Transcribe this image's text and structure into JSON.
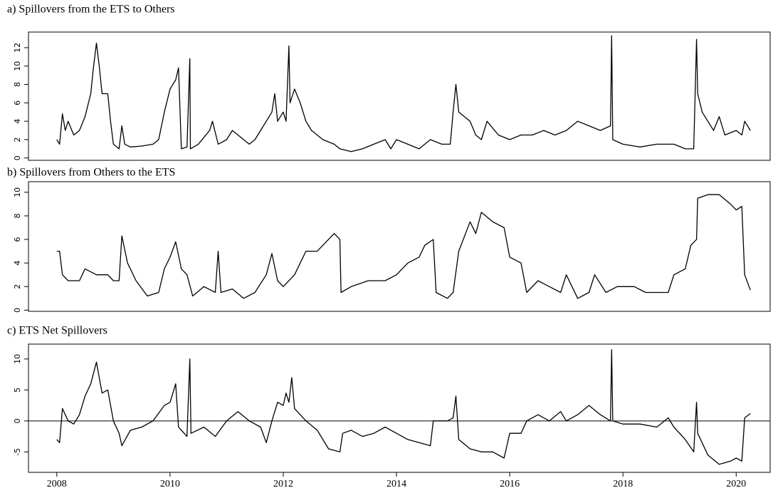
{
  "chart_data": [
    {
      "type": "line",
      "title": "a) Spillovers from the ETS to Others",
      "xlim": [
        2007.5,
        2020.6
      ],
      "ylim": [
        -0.25,
        13.7
      ],
      "yticks": [
        0,
        2,
        4,
        6,
        8,
        10,
        12
      ],
      "x": [
        2008.0,
        2008.05,
        2008.1,
        2008.15,
        2008.2,
        2008.3,
        2008.4,
        2008.5,
        2008.6,
        2008.65,
        2008.7,
        2008.75,
        2008.8,
        2008.9,
        2008.95,
        2009.0,
        2009.1,
        2009.15,
        2009.2,
        2009.3,
        2009.5,
        2009.7,
        2009.8,
        2009.9,
        2010.0,
        2010.1,
        2010.15,
        2010.2,
        2010.3,
        2010.35,
        2010.36,
        2010.5,
        2010.7,
        2010.75,
        2010.85,
        2011.0,
        2011.1,
        2011.2,
        2011.4,
        2011.5,
        2011.6,
        2011.7,
        2011.8,
        2011.85,
        2011.9,
        2012.0,
        2012.05,
        2012.1,
        2012.12,
        2012.2,
        2012.3,
        2012.4,
        2012.5,
        2012.7,
        2012.9,
        2013.0,
        2013.2,
        2013.4,
        2013.6,
        2013.8,
        2013.9,
        2014.0,
        2014.2,
        2014.4,
        2014.6,
        2014.8,
        2014.95,
        2015.0,
        2015.05,
        2015.1,
        2015.3,
        2015.4,
        2015.5,
        2015.6,
        2015.8,
        2016.0,
        2016.2,
        2016.4,
        2016.6,
        2016.8,
        2017.0,
        2017.2,
        2017.4,
        2017.6,
        2017.78,
        2017.8,
        2017.82,
        2018.0,
        2018.3,
        2018.6,
        2018.9,
        2019.1,
        2019.25,
        2019.3,
        2019.32,
        2019.4,
        2019.6,
        2019.7,
        2019.8,
        2020.0,
        2020.1,
        2020.15,
        2020.25
      ],
      "values": [
        2,
        1.5,
        4.8,
        3,
        4,
        2.5,
        3,
        4.5,
        7,
        10,
        12.5,
        10,
        7,
        7,
        4,
        1.5,
        1,
        3.5,
        1.5,
        1.2,
        1.3,
        1.5,
        2,
        5,
        7.5,
        8.5,
        9.8,
        1,
        1.2,
        10.8,
        1,
        1.5,
        3,
        4,
        1.5,
        2,
        3,
        2.5,
        1.5,
        2,
        3,
        4,
        5,
        7,
        4,
        5,
        4,
        12.2,
        6,
        7.5,
        6,
        4,
        3,
        2,
        1.5,
        1,
        0.7,
        1,
        1.5,
        2,
        1,
        2,
        1.5,
        1,
        2,
        1.5,
        1.5,
        5,
        8,
        5,
        4,
        2.5,
        2,
        4,
        2.5,
        2,
        2.5,
        2.5,
        3,
        2.5,
        3,
        4,
        3.5,
        3,
        3.5,
        13.3,
        2,
        1.5,
        1.2,
        1.5,
        1.5,
        1,
        1,
        12.9,
        7,
        5,
        3,
        4.5,
        2.5,
        3,
        2.5,
        4,
        3
      ],
      "color": "#000000"
    },
    {
      "type": "line",
      "title": "b) Spillovers from Others to the ETS",
      "xlim": [
        2007.5,
        2020.6
      ],
      "ylim": [
        -0.1,
        10.9
      ],
      "yticks": [
        0,
        2,
        4,
        6,
        8,
        10
      ],
      "x": [
        2008.0,
        2008.05,
        2008.1,
        2008.2,
        2008.4,
        2008.5,
        2008.7,
        2008.9,
        2009.0,
        2009.1,
        2009.15,
        2009.25,
        2009.4,
        2009.6,
        2009.8,
        2009.9,
        2010.0,
        2010.1,
        2010.2,
        2010.3,
        2010.4,
        2010.6,
        2010.8,
        2010.85,
        2010.9,
        2011.1,
        2011.3,
        2011.5,
        2011.7,
        2011.8,
        2011.9,
        2012.0,
        2012.2,
        2012.4,
        2012.6,
        2012.7,
        2012.9,
        2013.0,
        2013.02,
        2013.2,
        2013.5,
        2013.8,
        2014.0,
        2014.2,
        2014.4,
        2014.5,
        2014.65,
        2014.7,
        2014.9,
        2015.0,
        2015.1,
        2015.3,
        2015.4,
        2015.5,
        2015.7,
        2015.9,
        2016.0,
        2016.2,
        2016.3,
        2016.5,
        2016.7,
        2016.9,
        2017.0,
        2017.2,
        2017.4,
        2017.5,
        2017.7,
        2017.9,
        2018.2,
        2018.4,
        2018.6,
        2018.8,
        2018.9,
        2019.1,
        2019.2,
        2019.3,
        2019.32,
        2019.5,
        2019.7,
        2019.9,
        2020.0,
        2020.1,
        2020.15,
        2020.25
      ],
      "values": [
        5,
        5,
        3,
        2.5,
        2.5,
        3.5,
        3,
        3,
        2.5,
        2.5,
        6.3,
        4,
        2.5,
        1.2,
        1.5,
        3.5,
        4.5,
        5.8,
        3.5,
        3,
        1.2,
        2,
        1.5,
        5,
        1.5,
        1.8,
        1,
        1.5,
        3,
        4.8,
        2.5,
        2,
        3,
        5,
        5,
        5.5,
        6.5,
        6,
        1.5,
        2,
        2.5,
        2.5,
        3,
        4,
        4.5,
        5.5,
        6,
        1.5,
        1,
        1.5,
        5,
        7.5,
        6.5,
        8.3,
        7.5,
        7,
        4.5,
        4,
        1.5,
        2.5,
        2,
        1.5,
        3,
        1,
        1.5,
        3,
        1.5,
        2,
        2,
        1.5,
        1.5,
        1.5,
        3,
        3.5,
        5.5,
        6,
        9.5,
        9.8,
        9.8,
        9,
        8.5,
        8.8,
        3,
        1.7
      ],
      "color": "#000000"
    },
    {
      "type": "line",
      "title": "c) ETS Net Spillovers",
      "xlim": [
        2007.5,
        2020.6
      ],
      "ylim": [
        -8.3,
        12.4
      ],
      "yticks": [
        -5,
        0,
        5,
        10
      ],
      "xticks": [
        2008,
        2010,
        2012,
        2014,
        2016,
        2018,
        2020
      ],
      "hline": 0,
      "x": [
        2008.0,
        2008.05,
        2008.1,
        2008.2,
        2008.3,
        2008.4,
        2008.5,
        2008.6,
        2008.7,
        2008.75,
        2008.8,
        2008.9,
        2009.0,
        2009.1,
        2009.15,
        2009.3,
        2009.5,
        2009.7,
        2009.9,
        2010.0,
        2010.1,
        2010.15,
        2010.3,
        2010.35,
        2010.37,
        2010.6,
        2010.8,
        2011.0,
        2011.2,
        2011.4,
        2011.6,
        2011.7,
        2011.8,
        2011.9,
        2012.0,
        2012.05,
        2012.1,
        2012.15,
        2012.2,
        2012.4,
        2012.6,
        2012.8,
        2013.0,
        2013.05,
        2013.2,
        2013.4,
        2013.6,
        2013.8,
        2014.0,
        2014.2,
        2014.4,
        2014.6,
        2014.65,
        2014.9,
        2015.0,
        2015.05,
        2015.1,
        2015.3,
        2015.5,
        2015.7,
        2015.9,
        2016.0,
        2016.2,
        2016.3,
        2016.5,
        2016.7,
        2016.9,
        2017.0,
        2017.2,
        2017.4,
        2017.6,
        2017.78,
        2017.8,
        2017.82,
        2018.0,
        2018.3,
        2018.6,
        2018.8,
        2018.9,
        2019.1,
        2019.25,
        2019.3,
        2019.32,
        2019.5,
        2019.7,
        2019.9,
        2020.0,
        2020.1,
        2020.15,
        2020.25
      ],
      "values": [
        -3,
        -3.5,
        2,
        0,
        -0.5,
        1,
        4,
        6,
        9.5,
        7,
        4.5,
        5,
        0,
        -2,
        -4,
        -1.5,
        -1,
        0,
        2.5,
        3,
        6,
        -1,
        -2.5,
        10,
        -2,
        -1,
        -2.5,
        0,
        1.5,
        0,
        -1,
        -3.5,
        0,
        3,
        2.5,
        4.5,
        3,
        7,
        2,
        0,
        -1.5,
        -4.5,
        -5,
        -2,
        -1.5,
        -2.5,
        -2,
        -1,
        -2,
        -3,
        -3.5,
        -4,
        0,
        0,
        0.5,
        4,
        -3,
        -4.5,
        -5,
        -5,
        -6,
        -2,
        -2,
        0,
        1,
        0,
        1.5,
        0,
        1,
        2.5,
        1,
        0,
        11.5,
        0,
        -0.5,
        -0.5,
        -1,
        0.5,
        -1,
        -3,
        -5,
        3,
        -2,
        -5.5,
        -7,
        -6.5,
        -6,
        -6.5,
        0.5,
        1.2
      ],
      "color": "#000000"
    }
  ]
}
